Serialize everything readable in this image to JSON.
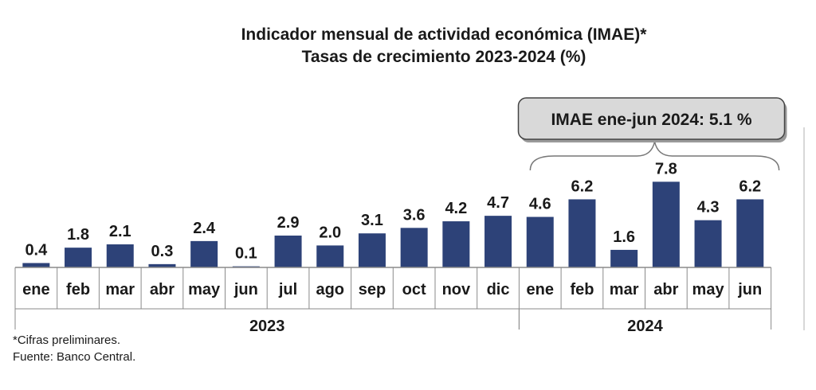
{
  "chart_data": {
    "type": "bar",
    "title": "Indicador mensual de actividad económica (IMAE)*",
    "subtitle": "Tasas de crecimiento 2023-2024 (%)",
    "categories": [
      "ene",
      "feb",
      "mar",
      "abr",
      "may",
      "jun",
      "jul",
      "ago",
      "sep",
      "oct",
      "nov",
      "dic",
      "ene",
      "feb",
      "mar",
      "abr",
      "may",
      "jun"
    ],
    "values": [
      0.4,
      1.8,
      2.1,
      0.3,
      2.4,
      0.1,
      2.9,
      2.0,
      3.1,
      3.6,
      4.2,
      4.7,
      4.6,
      6.2,
      1.6,
      7.8,
      4.3,
      6.2
    ],
    "value_labels": [
      "0.4",
      "1.8",
      "2.1",
      "0.3",
      "2.4",
      "0.1",
      "2.9",
      "2.0",
      "3.1",
      "3.6",
      "4.2",
      "4.7",
      "4.6",
      "6.2",
      "1.6",
      "7.8",
      "4.3",
      "6.2"
    ],
    "groups": [
      {
        "label": "2023",
        "count": 12
      },
      {
        "label": "2024",
        "count": 6
      }
    ],
    "annotation": "IMAE ene-jun 2024: 5.1 %",
    "ylim": [
      0,
      8
    ],
    "grid": false,
    "bar_color": "#2d4278"
  },
  "footnotes": {
    "note": "*Cifras preliminares.",
    "source": "Fuente: Banco Central."
  }
}
